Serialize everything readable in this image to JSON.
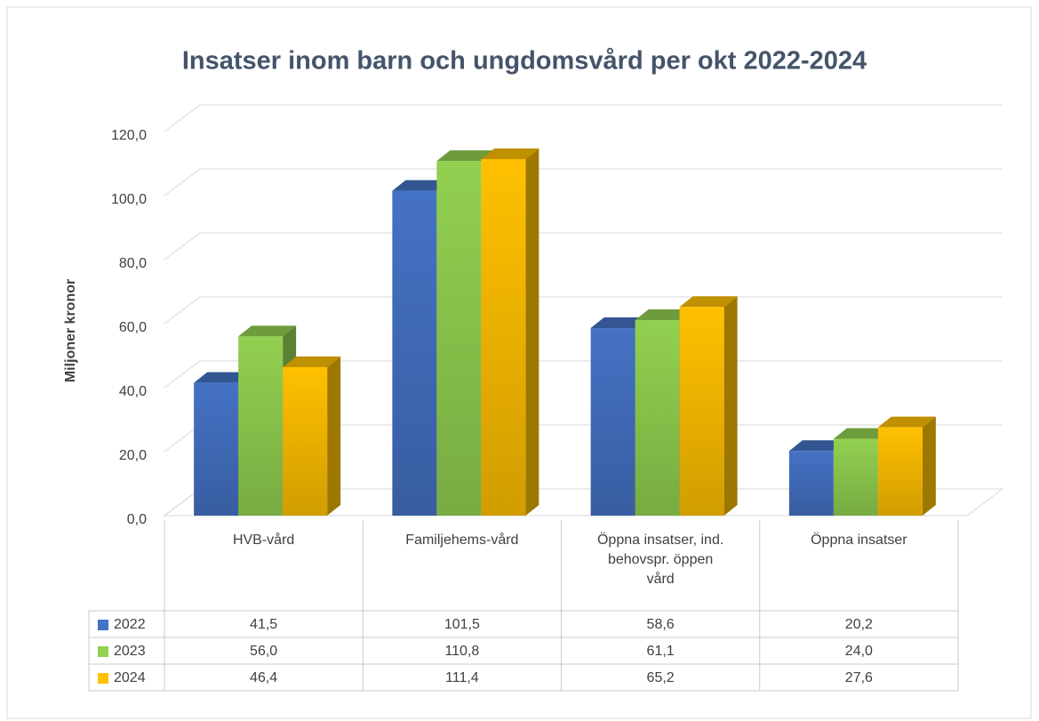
{
  "chart_data": {
    "type": "bar3d",
    "title": "Insatser inom barn och ungdomsvård per okt 2022-2024",
    "y_label": "Miljoner kronor",
    "categories": [
      "HVB-vård",
      "Familjehems-vård",
      "Öppna insatser, ind. behovspr. öppen vård",
      "Öppna insatser"
    ],
    "series": [
      {
        "name": "2022",
        "color": "#4472c4",
        "values": [
          41.5,
          101.5,
          58.6,
          20.2
        ],
        "value_labels": [
          "41,5",
          "101,5",
          "58,6",
          "20,2"
        ]
      },
      {
        "name": "2023",
        "color": "#92d050",
        "values": [
          56.0,
          110.8,
          61.1,
          24.0
        ],
        "value_labels": [
          "56,0",
          "110,8",
          "61,1",
          "24,0"
        ]
      },
      {
        "name": "2024",
        "color": "#ffc000",
        "values": [
          46.4,
          111.4,
          65.2,
          27.6
        ],
        "value_labels": [
          "46,4",
          "111,4",
          "65,2",
          "27,6"
        ]
      }
    ],
    "ylim": [
      0,
      120
    ],
    "yticks": [
      {
        "value": 0,
        "label": "0,0"
      },
      {
        "value": 20,
        "label": "20,0"
      },
      {
        "value": 40,
        "label": "40,0"
      },
      {
        "value": 60,
        "label": "60,0"
      },
      {
        "value": 80,
        "label": "80,0"
      },
      {
        "value": 100,
        "label": "100,0"
      },
      {
        "value": 120,
        "label": "120,0"
      }
    ],
    "grid": true,
    "data_table": true
  }
}
